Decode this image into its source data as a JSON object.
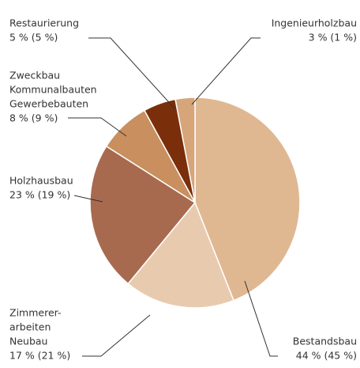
{
  "chart_data": {
    "type": "pie",
    "categories": [
      [
        "Bestandsbau"
      ],
      [
        "Zimmerer-",
        "arbeiten",
        "Neubau"
      ],
      [
        "Holzhausbau"
      ],
      [
        "Zweckbau",
        "Kommunalbauten",
        "Gewerbebauten"
      ],
      [
        "Restaurierung"
      ],
      [
        "Ingenieurholzbau"
      ]
    ],
    "values": [
      44,
      17,
      23,
      8,
      5,
      3
    ],
    "value_labels": [
      "44 % (45 %)",
      "17 % (21 %)",
      "23 % (19 %)",
      "8 % (9 %)",
      "5 % (5 %)",
      "3 % (1 %)"
    ],
    "colors": [
      "#dfb892",
      "#e8cbaf",
      "#a86a4e",
      "#c98f5e",
      "#7a2e0a",
      "#d6a57a"
    ]
  }
}
